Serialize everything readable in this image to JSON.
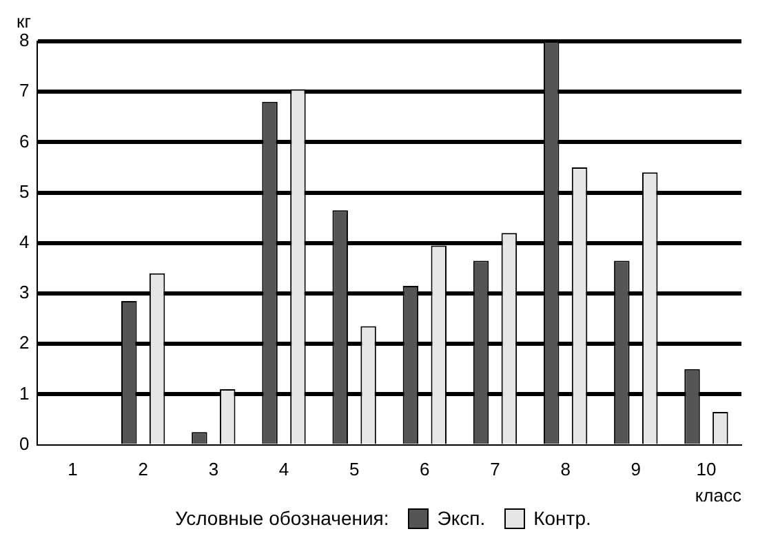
{
  "chart_data": {
    "type": "bar",
    "xlabel": "класс",
    "ylabel": "кг",
    "legend_title": "Условные обозначения:",
    "categories": [
      "1",
      "2",
      "3",
      "4",
      "5",
      "6",
      "7",
      "8",
      "9",
      "10"
    ],
    "series": [
      {
        "name": "Эксп.",
        "color": "#555555",
        "values": [
          null,
          2.85,
          0.25,
          6.8,
          4.65,
          3.15,
          3.65,
          8.0,
          3.65,
          1.5
        ]
      },
      {
        "name": "Контр.",
        "color": "#e6e6e6",
        "values": [
          null,
          3.4,
          1.1,
          7.05,
          2.35,
          3.95,
          4.2,
          5.5,
          5.4,
          0.65
        ]
      }
    ],
    "ylim": [
      0,
      8
    ],
    "yticks": [
      0,
      1,
      2,
      3,
      4,
      5,
      6,
      7,
      8
    ],
    "grid": "y",
    "legend": "bottom"
  }
}
